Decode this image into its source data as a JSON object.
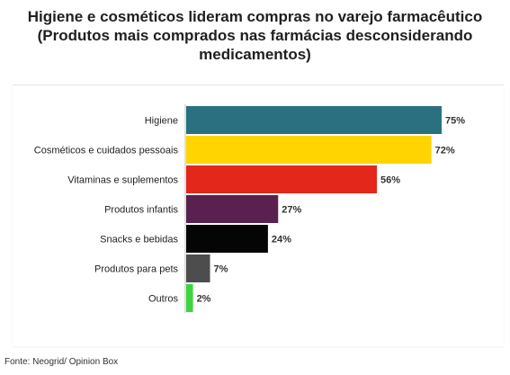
{
  "header": {
    "title_line1": "Higiene e cosméticos lideram compras no varejo farmacêutico",
    "title_line2": "(Produtos mais comprados nas farmácias desconsiderando",
    "title_line3": "medicamentos)"
  },
  "footer": {
    "source": "Fonte: Neogrid/ Opinion Box"
  },
  "chart_data": {
    "type": "bar",
    "orientation": "horizontal",
    "title": "Higiene e cosméticos lideram compras no varejo farmacêutico (Produtos mais comprados nas farmácias desconsiderando medicamentos)",
    "xlabel": "",
    "ylabel": "",
    "categories": [
      "Higiene",
      "Cosméticos e cuidados pessoais",
      "Vitaminas e suplementos",
      "Produtos infantis",
      "Snacks e bebidas",
      "Produtos para pets",
      "Outros"
    ],
    "values": [
      75,
      72,
      56,
      27,
      24,
      7,
      2
    ],
    "value_labels": [
      "75%",
      "72%",
      "56%",
      "27%",
      "24%",
      "7%",
      "2%"
    ],
    "bar_colors": [
      "#2a7080",
      "#ffd400",
      "#e3271b",
      "#5a2150",
      "#050505",
      "#4d4d4d",
      "#3ed43e"
    ],
    "xlim": [
      0,
      75
    ],
    "grid": false,
    "legend": "none"
  }
}
